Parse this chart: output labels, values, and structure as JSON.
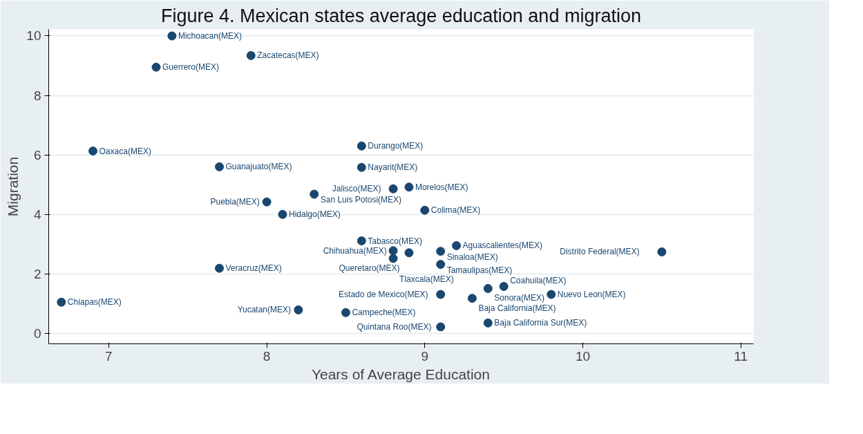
{
  "chart_data": {
    "type": "scatter",
    "title": "Figure 4. Mexican states average education and migration",
    "xlabel": "Years of Average Education",
    "ylabel": "Migration",
    "xlim": [
      6.62,
      11.08
    ],
    "ylim": [
      -0.35,
      10.22
    ],
    "xticks": [
      7,
      8,
      9,
      10,
      11
    ],
    "yticks": [
      0,
      2,
      4,
      6,
      8,
      10
    ],
    "grid": "y",
    "marker": "circle",
    "x": [
      7.4,
      7.9,
      7.3,
      6.9,
      8.6,
      7.7,
      8.6,
      8.3,
      8.8,
      8.9,
      8.0,
      8.1,
      9.0,
      8.6,
      9.2,
      8.8,
      8.9,
      9.1,
      8.8,
      9.1,
      10.5,
      7.7,
      9.5,
      9.4,
      9.1,
      9.8,
      9.3,
      6.7,
      8.2,
      8.5,
      9.4,
      9.1
    ],
    "series": [
      {
        "color": "#1a476f",
        "values": [
          10.0,
          9.34,
          8.95,
          6.13,
          6.3,
          5.6,
          5.58,
          4.68,
          4.86,
          4.92,
          4.42,
          4.0,
          4.14,
          3.11,
          2.95,
          2.78,
          2.71,
          2.76,
          2.52,
          2.32,
          2.74,
          2.19,
          1.58,
          1.51,
          1.31,
          1.31,
          1.18,
          1.05,
          0.79,
          0.7,
          0.35,
          0.22
        ]
      }
    ],
    "annotations": [
      {
        "text": "Michoacan(MEX)",
        "x": 7.4,
        "y": 10.0
      },
      {
        "text": "Zacatecas(MEX)",
        "x": 7.9,
        "y": 9.34
      },
      {
        "text": "Guerrero(MEX)",
        "x": 7.3,
        "y": 8.95
      },
      {
        "text": "Oaxaca(MEX)",
        "x": 6.9,
        "y": 6.13
      },
      {
        "text": "Durango(MEX)",
        "x": 8.6,
        "y": 6.3
      },
      {
        "text": "Guanajuato(MEX)",
        "x": 7.7,
        "y": 5.6
      },
      {
        "text": "Nayarit(MEX)",
        "x": 8.6,
        "y": 5.58
      },
      {
        "text": "San Luis Potosi(MEX)",
        "x": 8.3,
        "y": 4.68
      },
      {
        "text": "Jalisco(MEX)",
        "x": 8.8,
        "y": 4.86
      },
      {
        "text": "Morelos(MEX)",
        "x": 8.9,
        "y": 4.92
      },
      {
        "text": "Puebla(MEX)",
        "x": 8.0,
        "y": 4.42
      },
      {
        "text": "Hidalgo(MEX)",
        "x": 8.1,
        "y": 4.0
      },
      {
        "text": "Colima(MEX)",
        "x": 9.0,
        "y": 4.14
      },
      {
        "text": "Tabasco(MEX)",
        "x": 8.6,
        "y": 3.11
      },
      {
        "text": "Aguascalientes(MEX)",
        "x": 9.2,
        "y": 2.95
      },
      {
        "text": "Chihuahua(MEX)",
        "x": 8.8,
        "y": 2.78
      },
      {
        "text": "Queretaro(MEX)",
        "x": 8.9,
        "y": 2.71
      },
      {
        "text": "Sinaloa(MEX)",
        "x": 9.1,
        "y": 2.76
      },
      {
        "text": "Tlaxcala(MEX)",
        "x": 8.8,
        "y": 2.52
      },
      {
        "text": "Tamaulipas(MEX)",
        "x": 9.1,
        "y": 2.32
      },
      {
        "text": "Distrito Federal(MEX)",
        "x": 10.5,
        "y": 2.74
      },
      {
        "text": "Veracruz(MEX)",
        "x": 7.7,
        "y": 2.19
      },
      {
        "text": "Coahuila(MEX)",
        "x": 9.5,
        "y": 1.58
      },
      {
        "text": "Sonora(MEX)",
        "x": 9.4,
        "y": 1.51
      },
      {
        "text": "Estado de Mexico(MEX)",
        "x": 9.1,
        "y": 1.31
      },
      {
        "text": "Nuevo Leon(MEX)",
        "x": 9.8,
        "y": 1.31
      },
      {
        "text": "Baja California(MEX)",
        "x": 9.3,
        "y": 1.18
      },
      {
        "text": "Chiapas(MEX)",
        "x": 6.7,
        "y": 1.05
      },
      {
        "text": "Yucatan(MEX)",
        "x": 8.2,
        "y": 0.79
      },
      {
        "text": "Campeche(MEX)",
        "x": 8.5,
        "y": 0.7
      },
      {
        "text": "Baja California Sur(MEX)",
        "x": 9.4,
        "y": 0.35
      },
      {
        "text": "Quintana Roo(MEX)",
        "x": 9.1,
        "y": 0.22
      }
    ]
  }
}
